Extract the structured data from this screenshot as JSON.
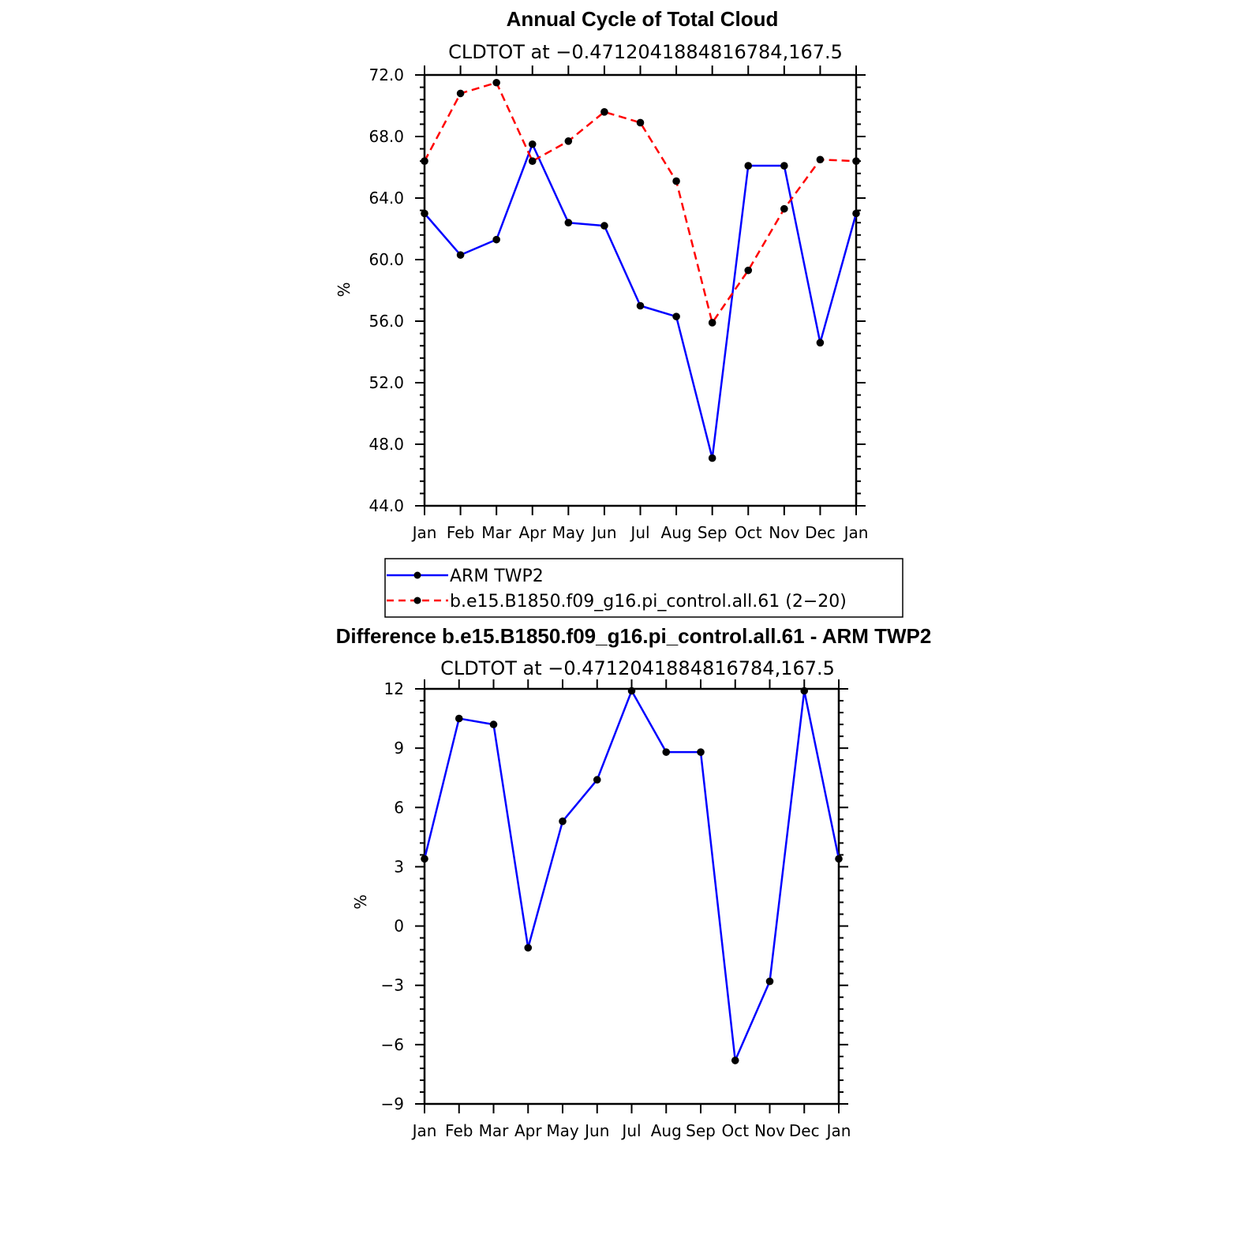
{
  "chart_data": [
    {
      "type": "line",
      "title": "Annual Cycle of Total Cloud",
      "subtitle": "CLDTOT at −0.4712041884816784,167.5",
      "ylabel": "%",
      "xlabel": "",
      "categories": [
        "Jan",
        "Feb",
        "Mar",
        "Apr",
        "May",
        "Jun",
        "Jul",
        "Aug",
        "Sep",
        "Oct",
        "Nov",
        "Dec",
        "Jan"
      ],
      "ylim": [
        44.0,
        72.0
      ],
      "yticks": [
        "44.0",
        "48.0",
        "52.0",
        "56.0",
        "60.0",
        "64.0",
        "68.0",
        "72.0"
      ],
      "ytick_values": [
        44,
        48,
        52,
        56,
        60,
        64,
        68,
        72
      ],
      "grid": false,
      "legend_placement": "bottom",
      "series": [
        {
          "name": "ARM TWP2",
          "color": "#0000ff",
          "line_style": "solid",
          "marker": "filled-circle",
          "values": [
            63.0,
            60.3,
            61.3,
            67.5,
            62.4,
            62.2,
            57.0,
            56.3,
            47.1,
            66.1,
            66.1,
            54.6,
            63.0
          ]
        },
        {
          "name": "b.e15.B1850.f09_g16.pi_control.all.61 (2−20)",
          "color": "#ff0000",
          "line_style": "dashed",
          "marker": "filled-circle",
          "values": [
            66.4,
            70.8,
            71.5,
            66.4,
            67.7,
            69.6,
            68.9,
            65.1,
            55.9,
            59.3,
            63.3,
            66.5,
            66.4
          ]
        }
      ]
    },
    {
      "type": "line",
      "title": "Difference b.e15.B1850.f09_g16.pi_control.all.61 - ARM TWP2",
      "subtitle": "CLDTOT at −0.4712041884816784,167.5",
      "ylabel": "%",
      "xlabel": "",
      "categories": [
        "Jan",
        "Feb",
        "Mar",
        "Apr",
        "May",
        "Jun",
        "Jul",
        "Aug",
        "Sep",
        "Oct",
        "Nov",
        "Dec",
        "Jan"
      ],
      "ylim": [
        -9,
        12
      ],
      "yticks": [
        "−9",
        "−6",
        "−3",
        "0",
        "3",
        "6",
        "9",
        "12"
      ],
      "ytick_values": [
        -9,
        -6,
        -3,
        0,
        3,
        6,
        9,
        12
      ],
      "grid": false,
      "series": [
        {
          "color": "#0000ff",
          "line_style": "solid",
          "marker": "filled-circle",
          "values": [
            3.4,
            10.5,
            10.2,
            -1.1,
            5.3,
            7.4,
            11.9,
            8.8,
            8.8,
            -6.8,
            -2.8,
            11.9,
            3.4
          ]
        }
      ]
    }
  ]
}
